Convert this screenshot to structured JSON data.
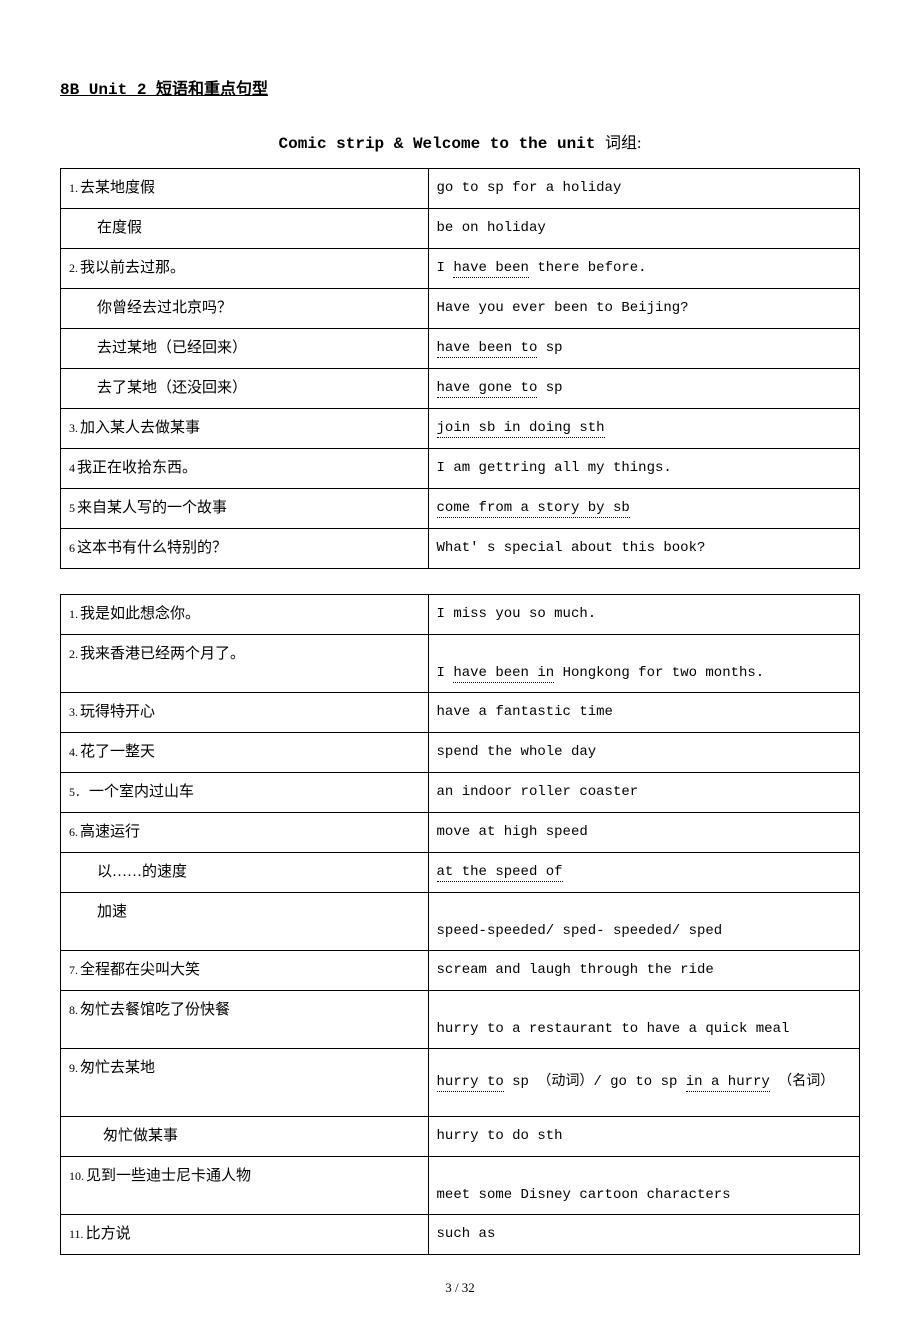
{
  "header": {
    "title_en": "8B Unit 2",
    "title_cn": "短语和重点句型"
  },
  "section": {
    "title_en": "Comic strip & Welcome to the unit",
    "title_cn": "词组:"
  },
  "table1": {
    "rows": [
      {
        "num": "1.",
        "cn": "去某地度假",
        "en": "go to sp for a holiday"
      },
      {
        "indent": true,
        "cn": "在度假",
        "en": "be on holiday"
      },
      {
        "num": "2.",
        "cn": "我以前去过那。",
        "en_pre": "I ",
        "en_dot": "have been",
        "en_post": " there before."
      },
      {
        "indent": true,
        "cn": "你曾经去过北京吗？",
        "en": "Have you ever been to Beijing?"
      },
      {
        "indent": true,
        "cn": "去过某地（已经回来）",
        "en_pre": "",
        "en_dot": "have been to",
        "en_post": " sp"
      },
      {
        "indent": true,
        "cn": "去了某地（还没回来）",
        "en_pre": "",
        "en_dot": "have gone to",
        "en_post": " sp"
      },
      {
        "num": "3.",
        "cn": "加入某人去做某事",
        "en_pre": "",
        "en_dot": "join sb in doing sth",
        "en_post": ""
      },
      {
        "num": "4",
        "cn": "我正在收拾东西。",
        "en": "I am gettring all my things."
      },
      {
        "num": "5",
        "cn": "来自某人写的一个故事",
        "en_pre": "",
        "en_dot": "come from a story by sb",
        "en_post": ""
      },
      {
        "num": "6",
        "cn": "这本书有什么特别的？",
        "en": "What' s special about this book?"
      }
    ]
  },
  "table2": {
    "rows": [
      {
        "num": "1.",
        "cn": "我是如此想念你。",
        "en": "I miss you so much."
      },
      {
        "num": "2.",
        "cn": "我来香港已经两个月了。",
        "en_pre": "I ",
        "en_dot": "have been in",
        "en_post": " Hongkong for two months.",
        "tall": true
      },
      {
        "num": "3.",
        "cn": "玩得特开心",
        "en": "have a fantastic time"
      },
      {
        "num": "4.",
        "cn": "花了一整天",
        "en": "spend the whole day"
      },
      {
        "num": "5．",
        "cn": "一个室内过山车",
        "en": "an indoor roller coaster"
      },
      {
        "num": "6.",
        "cn": "高速运行",
        "en": "move at high speed"
      },
      {
        "indent": true,
        "cn": "以……的速度",
        "en_pre": "",
        "en_dot": "at the speed of",
        "en_post": ""
      },
      {
        "indent": true,
        "cn": "加速",
        "en": "speed-speeded/ sped- speeded/ sped",
        "tall": true
      },
      {
        "num": "7.",
        "cn": "全程都在尖叫大笑",
        "en": "scream and laugh through the ride"
      },
      {
        "num": "8.",
        "cn": "匆忙去餐馆吃了份快餐",
        "en": "hurry to a restaurant to have a quick meal",
        "tall": true
      },
      {
        "num": "9.",
        "cn": "匆忙去某地",
        "en_html": true,
        "tall2": true
      },
      {
        "indent2": true,
        "cn": "匆忙做某事",
        "en": "hurry to do sth"
      },
      {
        "num": "10.",
        "cn": "见到一些迪士尼卡通人物",
        "en": "meet some Disney cartoon characters",
        "tall": true
      },
      {
        "num": "11.",
        "cn": "比方说",
        "en": "such as"
      }
    ]
  },
  "row9_en": {
    "p1": "hurry to",
    "p2": " sp （动词）/ go to sp ",
    "p3": "in a hurry",
    "p4": " （名词）"
  },
  "footer": {
    "page": "3 / 32"
  },
  "colors": {
    "text": "#000000",
    "background": "#ffffff",
    "border": "#000000"
  },
  "fonts": {
    "cn": "SimSun",
    "en": "Courier New",
    "title_size": 16,
    "body_size": 15,
    "en_size": 14,
    "num_size": 12
  }
}
